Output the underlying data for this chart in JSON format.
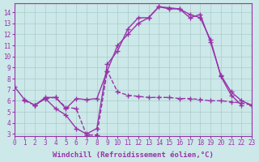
{
  "xlabel": "Windchill (Refroidissement éolien,°C)",
  "xlim": [
    0,
    23
  ],
  "ylim": [
    2.8,
    14.8
  ],
  "xticks": [
    0,
    1,
    2,
    3,
    4,
    5,
    6,
    7,
    8,
    9,
    10,
    11,
    12,
    13,
    14,
    15,
    16,
    17,
    18,
    19,
    20,
    21,
    22,
    23
  ],
  "yticks": [
    3,
    4,
    5,
    6,
    7,
    8,
    9,
    10,
    11,
    12,
    13,
    14
  ],
  "bg_color": "#cce8e8",
  "grid_color": "#aacccc",
  "line_color": "#9933aa",
  "curve1_x": [
    1,
    2,
    3,
    4,
    5,
    6,
    7,
    8,
    9,
    10,
    11,
    12,
    13,
    14,
    15,
    16,
    17,
    18,
    19,
    20,
    21,
    22,
    23
  ],
  "curve1_y": [
    6.0,
    5.6,
    6.2,
    6.3,
    5.4,
    5.3,
    2.9,
    2.9,
    8.7,
    6.8,
    6.5,
    6.4,
    6.3,
    6.3,
    6.3,
    6.2,
    6.2,
    6.1,
    6.0,
    6.0,
    5.9,
    5.8,
    5.6
  ],
  "curve2_x": [
    0,
    1,
    2,
    3,
    4,
    5,
    6,
    7,
    8,
    9,
    10,
    11,
    12,
    13,
    14,
    15,
    16,
    17,
    18,
    19,
    20,
    21,
    22
  ],
  "curve2_y": [
    7.3,
    6.1,
    5.6,
    6.2,
    5.3,
    4.7,
    3.5,
    3.0,
    3.5,
    9.3,
    10.5,
    12.5,
    13.5,
    13.5,
    14.5,
    14.4,
    14.3,
    13.8,
    13.5,
    11.5,
    8.2,
    6.5,
    5.6
  ],
  "curve3_x": [
    2,
    3,
    4,
    5,
    6,
    7,
    8,
    9,
    10,
    11,
    12,
    13,
    14,
    15,
    16,
    17,
    18,
    19,
    20,
    21,
    22,
    23
  ],
  "curve3_y": [
    5.6,
    6.3,
    6.3,
    5.3,
    6.2,
    6.1,
    6.2,
    8.7,
    11.0,
    12.0,
    13.0,
    13.5,
    14.5,
    14.3,
    14.3,
    13.5,
    13.8,
    11.3,
    8.3,
    6.8,
    6.0,
    5.6
  ],
  "linestyle1": "--",
  "linestyle2": "-",
  "linestyle3": "-",
  "marker": "+",
  "markersize": 4,
  "linewidth": 1.0,
  "tick_fontsize": 5.5,
  "label_fontsize": 6.5
}
